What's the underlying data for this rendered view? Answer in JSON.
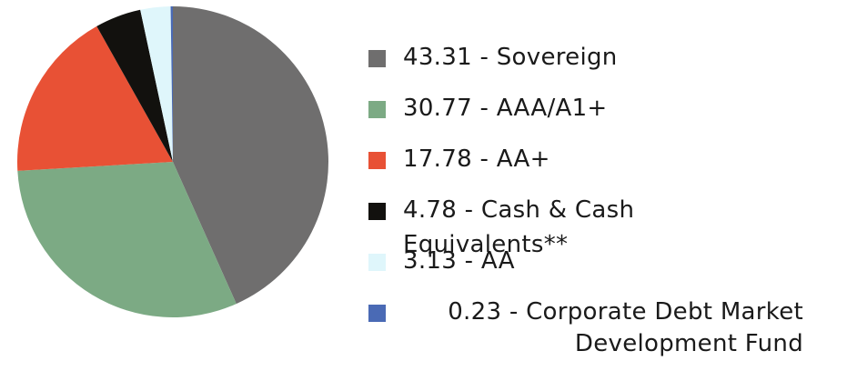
{
  "chart_data": {
    "type": "pie",
    "categories": [
      "43.31 - Sovereign",
      "30.77 - AAA/A1+",
      "17.78 - AA+",
      "4.78 - Cash & Cash Equivalents**",
      "3.13 - AA",
      "0.23 - Corporate Debt Market Development Fund"
    ],
    "values": [
      43.31,
      30.77,
      17.78,
      4.78,
      3.13,
      0.23
    ],
    "colors": [
      "#6f6e6e",
      "#7caa84",
      "#e85135",
      "#12110e",
      "#dff6fb",
      "#4a6ab5"
    ]
  }
}
